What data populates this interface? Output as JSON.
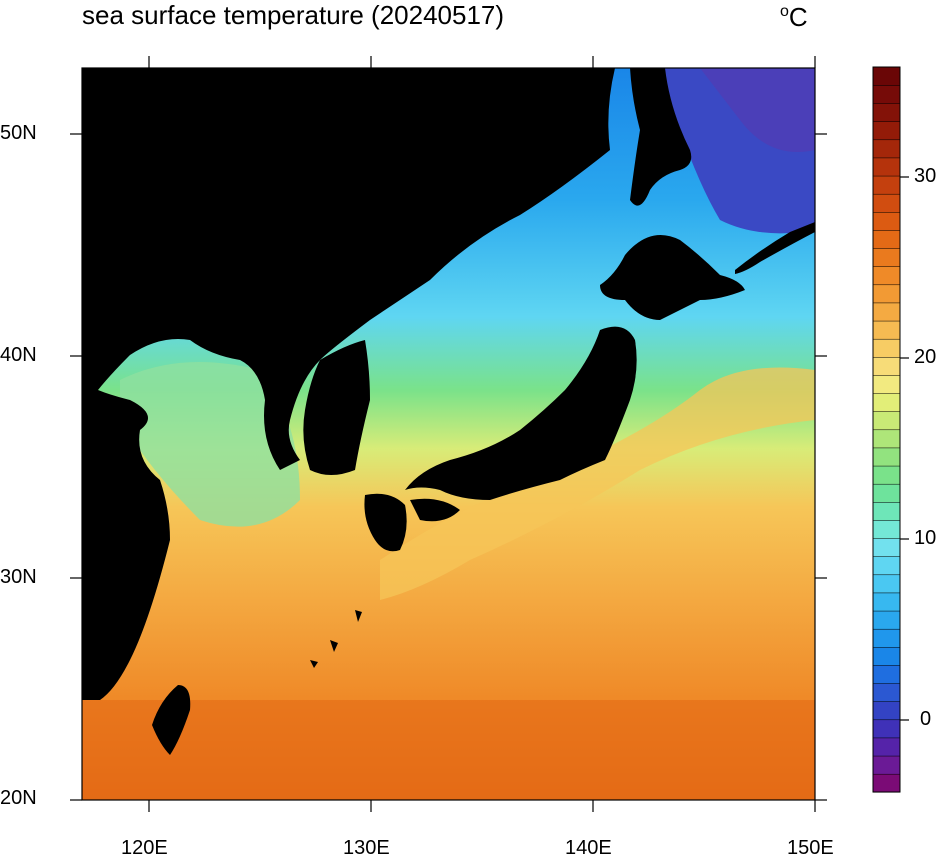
{
  "title": "sea surface temperature (20240517)",
  "unit": {
    "degree": "o",
    "letter": "C"
  },
  "map": {
    "type": "filled-contour map",
    "lon_range": [
      117,
      150
    ],
    "lat_range": [
      20,
      53
    ],
    "land_color": "#000000",
    "x_ticks": [
      "120E",
      "130E",
      "140E",
      "150E"
    ],
    "y_ticks": [
      "50N",
      "40N",
      "30N",
      "20N"
    ]
  },
  "colorbar": {
    "range": [
      -4,
      36
    ],
    "labels": [
      "30",
      "20",
      "10",
      "0"
    ],
    "levels": 40,
    "colors": [
      "#7b0b76",
      "#6b1a96",
      "#5523a9",
      "#3f31b8",
      "#3343c4",
      "#2b58d2",
      "#1f6ee0",
      "#1a86e8",
      "#2097ec",
      "#2aa8ee",
      "#37b8f0",
      "#4ac8f2",
      "#5fd6f2",
      "#72e1ee",
      "#74e8d6",
      "#6ee6b8",
      "#6ee39c",
      "#7ae28a",
      "#92e37f",
      "#aee679",
      "#c9ea76",
      "#e2ee78",
      "#f2ea80",
      "#f7dc78",
      "#f7cc64",
      "#f6bb52",
      "#f4aa42",
      "#f29a34",
      "#ef8a28",
      "#ea7a1e",
      "#e46a16",
      "#dc5b12",
      "#d14d10",
      "#c4400e",
      "#b5330c",
      "#a4270a",
      "#931b08",
      "#831208",
      "#760b08",
      "#6a0606"
    ]
  }
}
